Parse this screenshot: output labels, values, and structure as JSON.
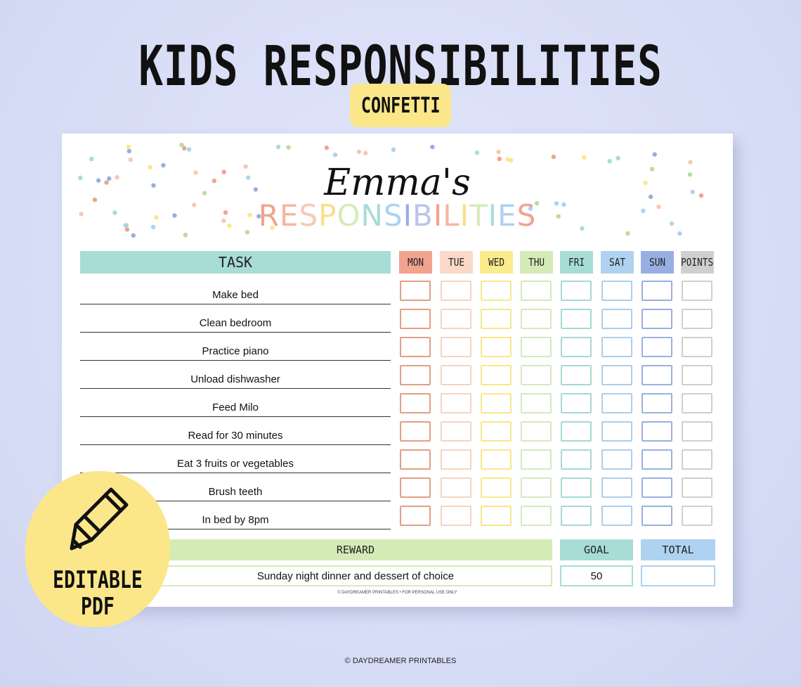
{
  "title": "KIDS RESPONSIBILITIES",
  "subtitle": "CONFETTI",
  "sheet": {
    "child_name": "Emma's",
    "heading": "RESPONSIBILITIES",
    "task_header": "TASK",
    "days": [
      {
        "label": "MON",
        "color": "#f0a48e",
        "border": "#e39f86"
      },
      {
        "label": "TUE",
        "color": "#fbd8c8",
        "border": "#f6d3c3"
      },
      {
        "label": "WED",
        "color": "#fbeb8c",
        "border": "#f8e78a"
      },
      {
        "label": "THU",
        "color": "#d5ebb7",
        "border": "#d3ebba"
      },
      {
        "label": "FRI",
        "color": "#a8dcd6",
        "border": "#a6d9d3"
      },
      {
        "label": "SAT",
        "color": "#aed2f0",
        "border": "#aacfee"
      },
      {
        "label": "SUN",
        "color": "#98aee3",
        "border": "#9ab0e2"
      },
      {
        "label": "POINTS",
        "color": "#cfcfcf",
        "border": "#cfcfcf"
      }
    ],
    "tasks": [
      "Make bed",
      "Clean bedroom",
      "Practice piano",
      "Unload dishwasher",
      "Feed Milo",
      "Read for 30 minutes",
      "Eat 3 fruits or vegetables",
      "Brush teeth",
      "In bed by 8pm"
    ],
    "reward_header": "REWARD",
    "goal_header": "GOAL",
    "total_header": "TOTAL",
    "reward_value": "Sunday night dinner and dessert of choice",
    "goal_value": "50",
    "total_value": "",
    "footer": "© DAYDREAMER PRINTABLES • FOR PERSONAL USE ONLY"
  },
  "badge": {
    "line1": "EDITABLE",
    "line2": "PDF",
    "icon": "pencil-icon"
  },
  "credit": "© DAYDREAMER PRINTABLES",
  "heading_letter_colors": [
    "#f0a48e",
    "#f4b7a0",
    "#f6c9b4",
    "#f8e08a",
    "#d5ebb7",
    "#a8dcd6",
    "#aed2f0",
    "#98aee3",
    "#b9c5ec",
    "#f0a48e",
    "#f4b7a0",
    "#f8e08a",
    "#d5ebb7",
    "#a8dcd6",
    "#aed2f0",
    "#f0a48e"
  ],
  "confetti_colors": [
    "#f0a48e",
    "#fbe78a",
    "#b9dca0",
    "#a8dcd6",
    "#aed2f0",
    "#98aee3",
    "#f6c9b4"
  ]
}
